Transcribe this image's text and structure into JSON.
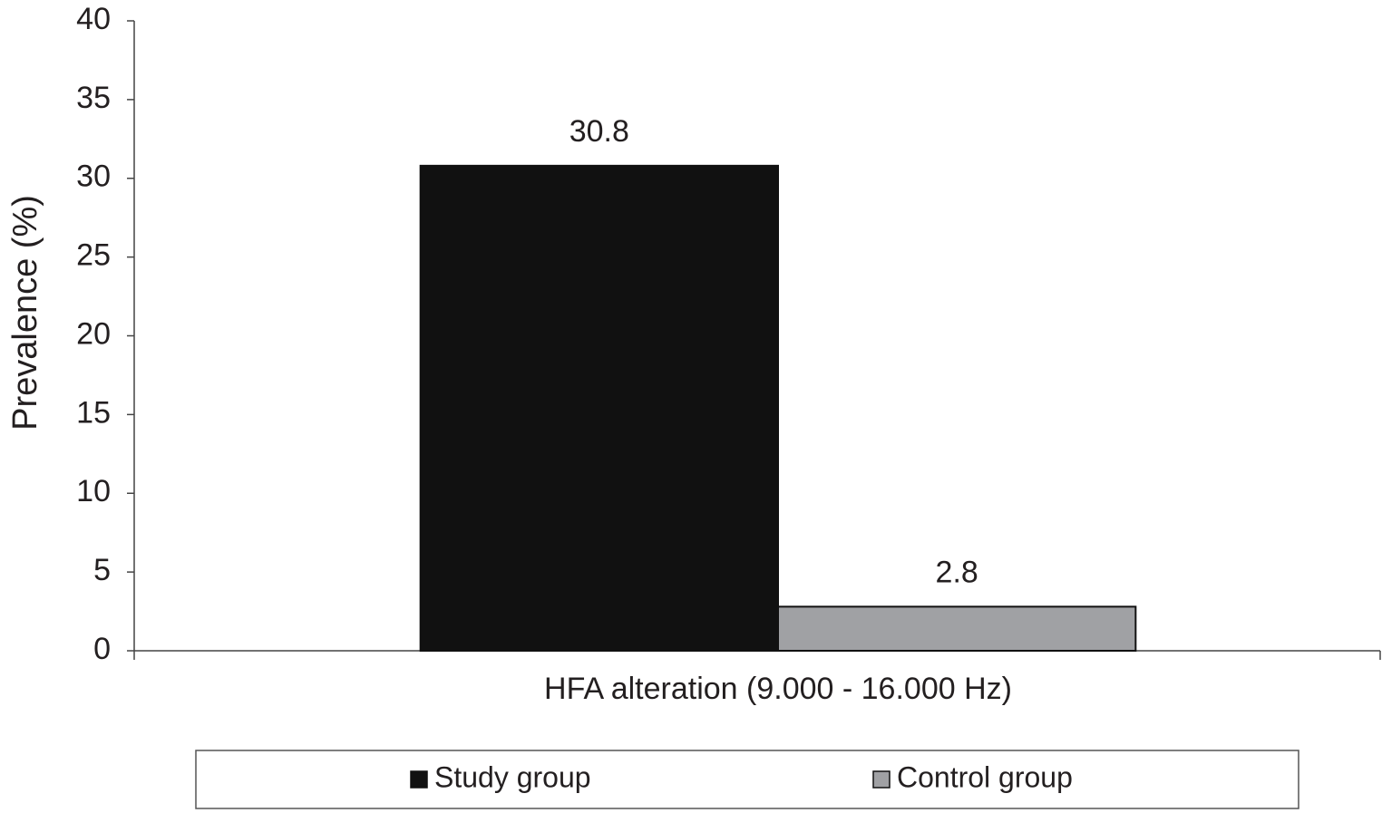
{
  "chart_data": {
    "type": "bar",
    "y_label": "Prevalence (%)",
    "categories": [
      "HFA alteration (9.000 - 16.000 Hz)"
    ],
    "series": [
      {
        "name": "Study group",
        "color": "#111111",
        "values": [
          30.8
        ]
      },
      {
        "name": "Control group",
        "color": "#a0a1a4",
        "values": [
          2.8
        ]
      }
    ],
    "ylim": [
      0,
      40
    ],
    "yticks": [
      0,
      5,
      10,
      15,
      20,
      25,
      30,
      35,
      40
    ],
    "legend": "bottom",
    "data_labels": true
  }
}
